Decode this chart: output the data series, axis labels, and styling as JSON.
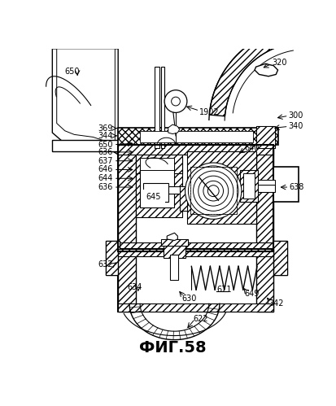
{
  "title": "ФИГ.58",
  "bg": "#ffffff",
  "lw": 1.0,
  "ann_fs": 7.0,
  "title_fs": 14
}
